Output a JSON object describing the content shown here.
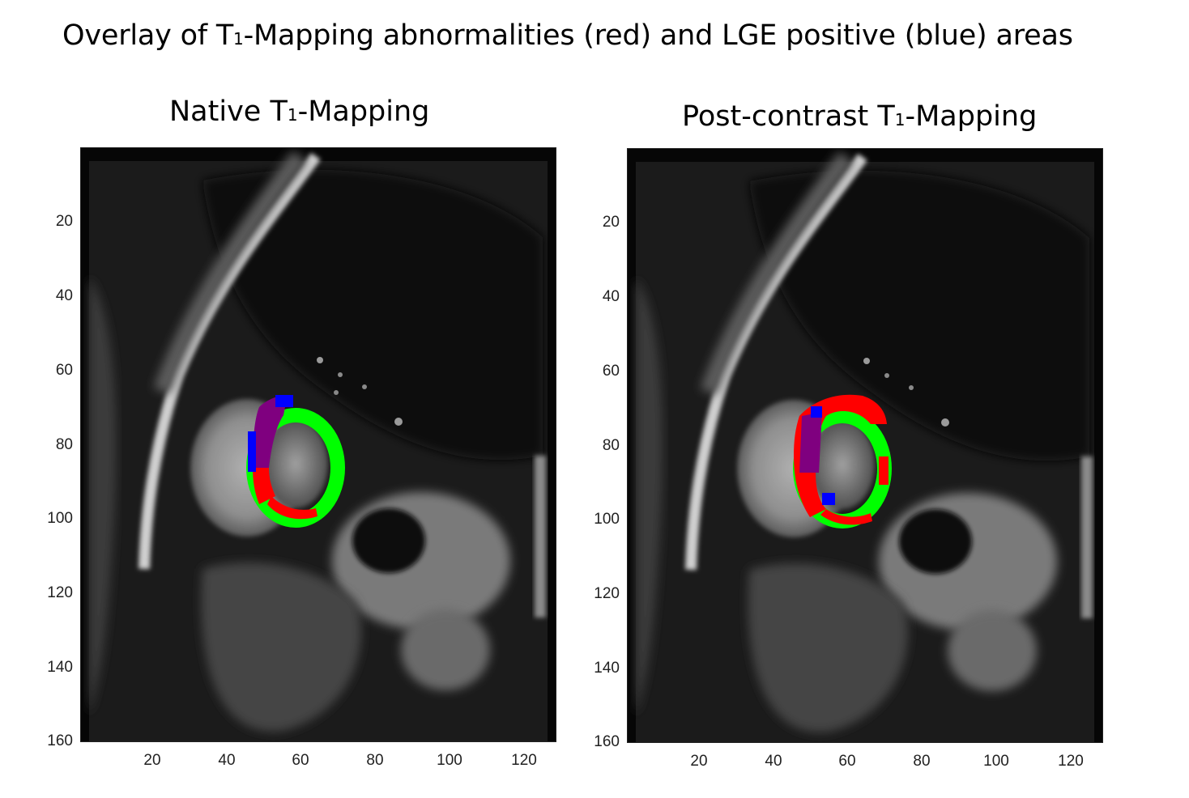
{
  "figure": {
    "title_prefix": "Overlay of T",
    "title_sub": "1",
    "title_suffix": "-Mapping abnormalities (red) and LGE positive (blue) areas"
  },
  "panels": [
    {
      "title_prefix": "Native T",
      "title_sub": "1",
      "title_suffix": "-Mapping",
      "y_ticks": [
        "20",
        "40",
        "60",
        "80",
        "100",
        "120",
        "140",
        "160"
      ],
      "x_ticks": [
        "20",
        "40",
        "60",
        "80",
        "100",
        "120"
      ]
    },
    {
      "title_prefix": "Post-contrast T",
      "title_sub": "1",
      "title_suffix": "-Mapping",
      "y_ticks": [
        "20",
        "40",
        "60",
        "80",
        "100",
        "120",
        "140",
        "160"
      ],
      "x_ticks": [
        "20",
        "40",
        "60",
        "80",
        "100",
        "120"
      ]
    }
  ],
  "colors": {
    "normal_myocardium": "#00ff00",
    "t1_abnormal": "#ff0000",
    "lge_positive": "#0000ff",
    "overlap": "#7f007f"
  }
}
